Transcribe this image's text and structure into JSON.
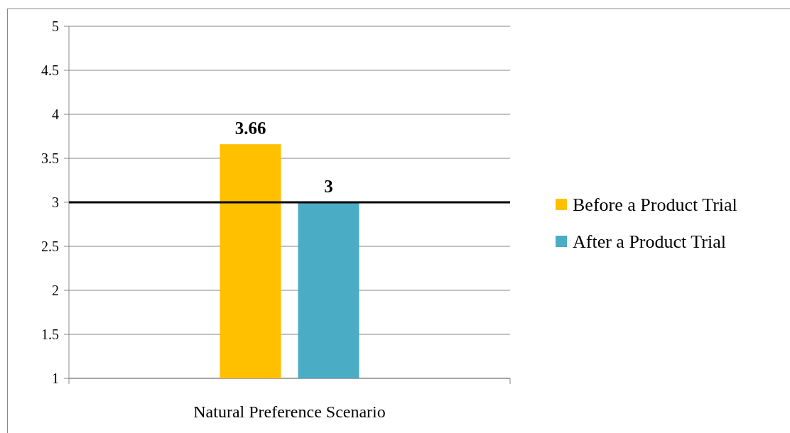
{
  "chart_data": {
    "type": "bar",
    "categories": [
      "Natural Preference Scenario"
    ],
    "series": [
      {
        "name": "Before a Product Trial",
        "color": "#ffc000",
        "values": [
          3.66
        ]
      },
      {
        "name": "After a Product Trial",
        "color": "#4bacc6",
        "values": [
          3
        ]
      }
    ],
    "ylim": [
      1,
      5
    ],
    "yticks": [
      1,
      1.5,
      2,
      2.5,
      3,
      3.5,
      4,
      4.5,
      5
    ],
    "grid": "y",
    "legend": "right",
    "data_labels": true,
    "ref_lines": [
      {
        "axis": "y",
        "value": 3,
        "color": "#000000"
      }
    ]
  }
}
